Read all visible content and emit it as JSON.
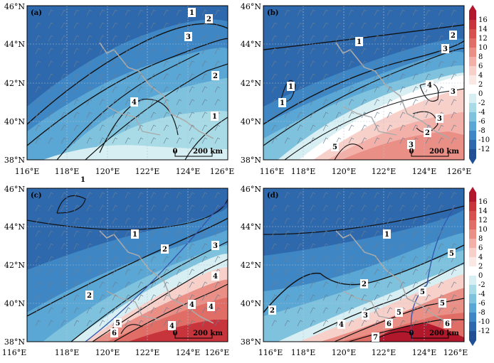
{
  "figure": {
    "colorbar": {
      "ticks": [
        "16",
        "14",
        "12",
        "10",
        "8",
        "6",
        "4",
        "2",
        "0",
        "-2",
        "-4",
        "-6",
        "-8",
        "-10",
        "-12"
      ],
      "colors": [
        "#b2182b",
        "#c8343c",
        "#d6504e",
        "#e06e66",
        "#ea8f86",
        "#f2b0a8",
        "#f8d0ca",
        "#fbe8e4",
        "#ffffff",
        "#d7eef2",
        "#a9dbe6",
        "#7ec2de",
        "#5aa6d4",
        "#3f86c4",
        "#2e68ad",
        "#214f94"
      ]
    },
    "x_ticks": [
      "116°E",
      "118°E",
      "120°E",
      "122°E",
      "124°E",
      "126°E"
    ],
    "y_ticks": [
      "38°N",
      "40°N",
      "42°N",
      "44°N",
      "46°N"
    ],
    "scale_bar": {
      "zero": "0",
      "label": "200 km"
    },
    "panels": [
      {
        "letter": "(a)",
        "contour_labels": [
          "1",
          "2",
          "3",
          "2",
          "1",
          "4"
        ],
        "colors": {
          "cold_deep": "#2e68ad",
          "cold_mid": "#5aa6d4",
          "cold_light": "#8ccbe3"
        }
      },
      {
        "letter": "(b)",
        "contour_labels": [
          "1",
          "2",
          "3",
          "1",
          "1",
          "4",
          "3",
          "3",
          "2",
          "5",
          "3"
        ],
        "colors": {
          "cold_deep": "#2e68ad",
          "warm_light": "#f8d0ca",
          "warm_mid": "#ea8f86"
        }
      },
      {
        "letter": "(c)",
        "contour_labels": [
          "1",
          "1",
          "2",
          "3",
          "4",
          "2",
          "4",
          "4",
          "5",
          "6",
          "4"
        ],
        "colors": {
          "cold_deep": "#2e68ad",
          "warm_mid": "#e06e66",
          "warm_deep": "#c8343c"
        }
      },
      {
        "letter": "(d)",
        "contour_labels": [
          "1",
          "2",
          "2",
          "5",
          "5",
          "5",
          "3",
          "4",
          "5",
          "6",
          "6",
          "7"
        ],
        "colors": {
          "cold_deep": "#2e68ad",
          "warm_mid": "#e06e66",
          "warm_deep": "#b2182b"
        }
      }
    ]
  }
}
